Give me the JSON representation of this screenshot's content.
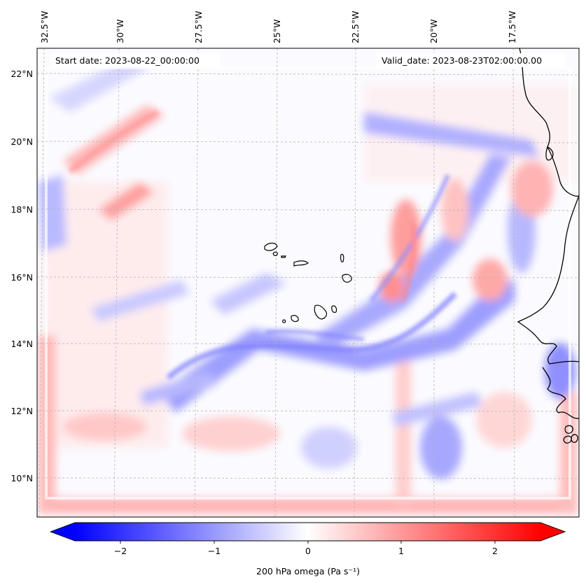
{
  "header": {
    "start_date": "Start date: 2023-08-22_00:00:00",
    "valid_date": "Valid_date: 2023-08-23T02:00:00.00"
  },
  "axes": {
    "lon_labels": [
      "32.5°W",
      "30°W",
      "27.5°W",
      "25°W",
      "22.5°W",
      "20°W",
      "17.5°W"
    ],
    "lat_labels": [
      "22°N",
      "20°N",
      "18°N",
      "16°N",
      "14°N",
      "12°N",
      "10°N"
    ]
  },
  "colorbar": {
    "label": "200 hPa omega (Pa s⁻¹)",
    "ticks": [
      "−2",
      "−1",
      "0",
      "1",
      "2"
    ],
    "colors": {
      "low": "#0000ff",
      "mid": "#ffffff",
      "high": "#ff0000"
    }
  },
  "chart_data": {
    "type": "heatmap",
    "variable": "200 hPa omega",
    "units": "Pa s⁻¹",
    "colormap": "bwr",
    "color_range": [
      -2.6,
      2.6
    ],
    "lon_range": [
      -33.0,
      -15.5
    ],
    "lat_range": [
      8.8,
      22.8
    ],
    "grid": true,
    "colorbar_ticks": [
      -2,
      -1,
      0,
      1,
      2
    ],
    "lon_ticks": [
      -32.5,
      -30,
      -27.5,
      -25,
      -22.5,
      -20,
      -17.5
    ],
    "lat_ticks": [
      22,
      20,
      18,
      16,
      14,
      12,
      10
    ]
  }
}
